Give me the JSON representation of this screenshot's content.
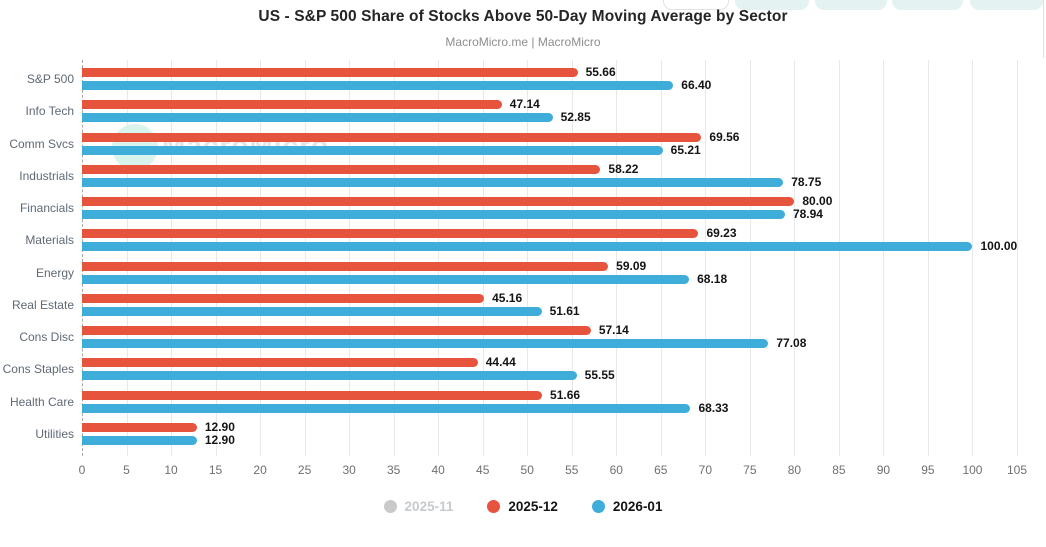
{
  "header": {
    "title": "US - S&P 500 Share of Stocks Above 50-Day Moving Average by Sector",
    "subtitle": "MacroMicro.me | MacroMicro"
  },
  "watermark": {
    "text": "MacroMicro"
  },
  "colors": {
    "series_inactive_gray": "#c9c9c9",
    "series_red": "#e6543d",
    "series_blue": "#3fadda",
    "grid": "#e8e8e8",
    "toolbar_teal": "#e4f3f1"
  },
  "chart_data": {
    "type": "bar",
    "orientation": "horizontal",
    "title": "US - S&P 500 Share of Stocks Above 50-Day Moving Average by Sector",
    "xlabel": "",
    "ylabel": "",
    "xlim": [
      0,
      105
    ],
    "x_ticks": [
      0,
      5,
      10,
      15,
      20,
      25,
      30,
      35,
      40,
      45,
      50,
      55,
      60,
      65,
      70,
      75,
      80,
      85,
      90,
      95,
      100,
      105
    ],
    "grid": "vertical",
    "legend_position": "bottom",
    "value_labels_decimals": 2,
    "categories": [
      "S&P 500",
      "Info Tech",
      "Comm Svcs",
      "Industrials",
      "Financials",
      "Materials",
      "Energy",
      "Real Estate",
      "Cons Disc",
      "Cons Staples",
      "Health Care",
      "Utilities"
    ],
    "series": [
      {
        "name": "2025-11",
        "color": "#c9c9c9",
        "visible": false,
        "values": []
      },
      {
        "name": "2025-12",
        "color": "#e6543d",
        "visible": true,
        "values": [
          55.66,
          47.14,
          69.56,
          58.22,
          80.0,
          69.23,
          59.09,
          45.16,
          57.14,
          44.44,
          51.66,
          12.9
        ]
      },
      {
        "name": "2026-01",
        "color": "#3fadda",
        "visible": true,
        "values": [
          66.4,
          52.85,
          65.21,
          78.75,
          78.94,
          100.0,
          68.18,
          51.61,
          77.08,
          55.55,
          68.33,
          12.9
        ]
      }
    ]
  }
}
